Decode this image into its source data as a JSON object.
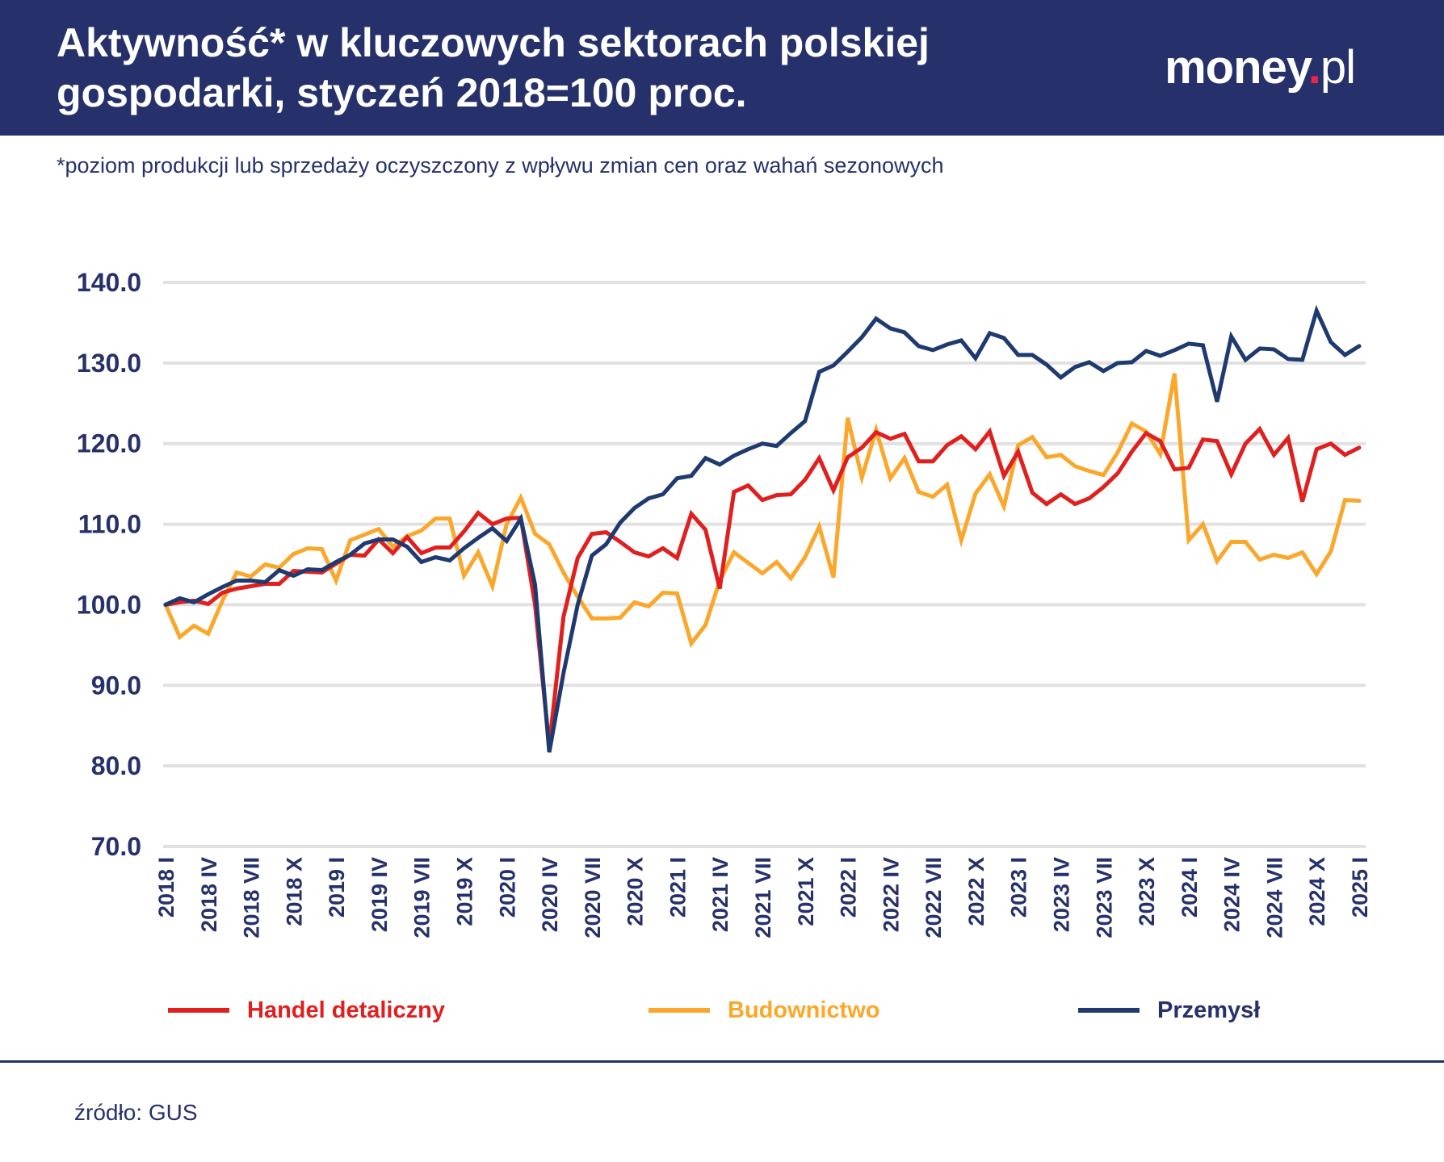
{
  "header": {
    "title": "Aktywność* w kluczowych sektorach polskiej gospodarki, styczeń 2018=100 proc.",
    "logo_main": "money",
    "logo_dot": ".",
    "logo_suffix": "pl",
    "background_color": "#26316b"
  },
  "subtitle": "*poziom produkcji lub sprzedaży oczyszczony z wpływu zmian cen oraz wahań sezonowych",
  "source": "źródło: GUS",
  "chart_data": {
    "type": "line",
    "title": "Aktywność* w kluczowych sektorach polskiej gospodarki, styczeń 2018=100 proc.",
    "ylim": [
      70,
      140
    ],
    "y_ticks": [
      "70.0",
      "80.0",
      "90.0",
      "100.0",
      "110.0",
      "120.0",
      "130.0",
      "140.0"
    ],
    "grid": "horizontal",
    "legend_placement": "bottom",
    "x_tick_labels": [
      "2018 I",
      "2018 IV",
      "2018 VII",
      "2018 X",
      "2019 I",
      "2019 IV",
      "2019 VII",
      "2019 X",
      "2020 I",
      "2020 IV",
      "2020 VII",
      "2020 X",
      "2021 I",
      "2021 IV",
      "2021 VII",
      "2021 X",
      "2022 I",
      "2022 IV",
      "2022 VII",
      "2022 X",
      "2023 I",
      "2023 IV",
      "2023 VII",
      "2023 X",
      "2024 I",
      "2024 IV",
      "2024 VII",
      "2024 X",
      "2025 I"
    ],
    "x_start": "2018-01",
    "x_end": "2025-01",
    "x_frequency": "monthly",
    "series": [
      {
        "name": "Handel detaliczny",
        "color": "#e0201f",
        "values": [
          100,
          100.3,
          100.5,
          100.1,
          101.5,
          102,
          102.3,
          102.6,
          102.6,
          104.2,
          104.1,
          104,
          105.1,
          106.2,
          106.1,
          108.1,
          106.4,
          108.4,
          106.4,
          107.1,
          107.1,
          109.1,
          111.4,
          110,
          110.7,
          110.8,
          100,
          82.5,
          98.5,
          105.8,
          108.8,
          109,
          107.8,
          106.5,
          106,
          107,
          105.8,
          111.3,
          109.3,
          102,
          114,
          114.8,
          113,
          113.6,
          113.7,
          115.5,
          118.2,
          114.2,
          118.3,
          119.5,
          121.4,
          120.6,
          121.2,
          117.8,
          117.8,
          119.8,
          120.9,
          119.3,
          121.5,
          116,
          119,
          113.9,
          112.5,
          113.7,
          112.5,
          113.2,
          114.6,
          116.3,
          119,
          121.3,
          120.3,
          116.8,
          117,
          120.5,
          120.3,
          116.2,
          120,
          121.8,
          118.6,
          120.7,
          112.8,
          119.3,
          120,
          118.6,
          119.5
        ]
      },
      {
        "name": "Budownictwo",
        "color": "#fba72b",
        "values": [
          100,
          96,
          97.4,
          96.4,
          100.5,
          104,
          103.5,
          105,
          104.6,
          106.3,
          107,
          106.9,
          103,
          108,
          108.7,
          109.4,
          107.2,
          108.5,
          109.2,
          110.7,
          110.7,
          103.6,
          106.5,
          102.3,
          110,
          113.3,
          108.8,
          107.5,
          104,
          101,
          98.3,
          98.3,
          98.4,
          100.3,
          99.8,
          101.5,
          101.4,
          95.2,
          97.5,
          103,
          106.5,
          105.2,
          103.9,
          105.3,
          103.3,
          105.9,
          109.7,
          103.4,
          123.2,
          115.8,
          121.7,
          115.7,
          118.2,
          114,
          113.4,
          114.9,
          108,
          113.8,
          116.2,
          112.2,
          119.8,
          120.8,
          118.3,
          118.6,
          117.2,
          116.6,
          116.1,
          118.9,
          122.5,
          121.5,
          118.7,
          128.7,
          108,
          110,
          105.4,
          107.8,
          107.8,
          105.6,
          106.2,
          105.8,
          106.5,
          103.8,
          106.6,
          113,
          112.9
        ]
      },
      {
        "name": "Przemysł",
        "color": "#1e3a70",
        "values": [
          100,
          100.8,
          100.3,
          101.3,
          102.2,
          103,
          103,
          102.8,
          104.3,
          103.6,
          104.4,
          104.3,
          105.3,
          106.2,
          107.6,
          108.1,
          108.1,
          107.2,
          105.3,
          105.9,
          105.5,
          107,
          108.3,
          109.5,
          107.9,
          110.7,
          102.5,
          81.7,
          91.5,
          100,
          106.1,
          107.5,
          110.2,
          112,
          113.2,
          113.7,
          115.7,
          116,
          118.2,
          117.4,
          118.5,
          119.3,
          120,
          119.7,
          121.3,
          122.8,
          128.9,
          129.7,
          131.4,
          133.2,
          135.5,
          134.3,
          133.8,
          132.1,
          131.6,
          132.3,
          132.8,
          130.6,
          133.7,
          133.1,
          131,
          131,
          129.8,
          128.2,
          129.5,
          130.1,
          129,
          130,
          130.1,
          131.5,
          130.9,
          131.6,
          132.4,
          132.2,
          125.2,
          133.3,
          130.4,
          131.8,
          131.7,
          130.5,
          130.4,
          136.5,
          132.6,
          131,
          132.1
        ]
      }
    ]
  }
}
